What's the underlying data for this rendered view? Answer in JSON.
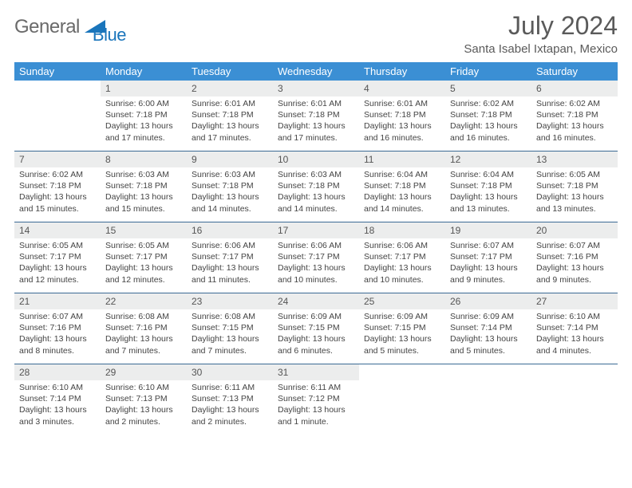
{
  "logo": {
    "main": "General",
    "sub": "Blue"
  },
  "title": "July 2024",
  "location": "Santa Isabel Ixtapan, Mexico",
  "colors": {
    "header_bg": "#3b8fd4",
    "divider": "#3b6a94",
    "daynum_bg": "#eceded",
    "text": "#444444",
    "title_color": "#5a5a5a",
    "logo_main": "#6a6a6a",
    "logo_sub": "#1a75bb"
  },
  "weekdays": [
    "Sunday",
    "Monday",
    "Tuesday",
    "Wednesday",
    "Thursday",
    "Friday",
    "Saturday"
  ],
  "grid": [
    [
      null,
      {
        "d": "1",
        "sr": "6:00 AM",
        "ss": "7:18 PM",
        "dl": "13 hours and 17 minutes."
      },
      {
        "d": "2",
        "sr": "6:01 AM",
        "ss": "7:18 PM",
        "dl": "13 hours and 17 minutes."
      },
      {
        "d": "3",
        "sr": "6:01 AM",
        "ss": "7:18 PM",
        "dl": "13 hours and 17 minutes."
      },
      {
        "d": "4",
        "sr": "6:01 AM",
        "ss": "7:18 PM",
        "dl": "13 hours and 16 minutes."
      },
      {
        "d": "5",
        "sr": "6:02 AM",
        "ss": "7:18 PM",
        "dl": "13 hours and 16 minutes."
      },
      {
        "d": "6",
        "sr": "6:02 AM",
        "ss": "7:18 PM",
        "dl": "13 hours and 16 minutes."
      }
    ],
    [
      {
        "d": "7",
        "sr": "6:02 AM",
        "ss": "7:18 PM",
        "dl": "13 hours and 15 minutes."
      },
      {
        "d": "8",
        "sr": "6:03 AM",
        "ss": "7:18 PM",
        "dl": "13 hours and 15 minutes."
      },
      {
        "d": "9",
        "sr": "6:03 AM",
        "ss": "7:18 PM",
        "dl": "13 hours and 14 minutes."
      },
      {
        "d": "10",
        "sr": "6:03 AM",
        "ss": "7:18 PM",
        "dl": "13 hours and 14 minutes."
      },
      {
        "d": "11",
        "sr": "6:04 AM",
        "ss": "7:18 PM",
        "dl": "13 hours and 14 minutes."
      },
      {
        "d": "12",
        "sr": "6:04 AM",
        "ss": "7:18 PM",
        "dl": "13 hours and 13 minutes."
      },
      {
        "d": "13",
        "sr": "6:05 AM",
        "ss": "7:18 PM",
        "dl": "13 hours and 13 minutes."
      }
    ],
    [
      {
        "d": "14",
        "sr": "6:05 AM",
        "ss": "7:17 PM",
        "dl": "13 hours and 12 minutes."
      },
      {
        "d": "15",
        "sr": "6:05 AM",
        "ss": "7:17 PM",
        "dl": "13 hours and 12 minutes."
      },
      {
        "d": "16",
        "sr": "6:06 AM",
        "ss": "7:17 PM",
        "dl": "13 hours and 11 minutes."
      },
      {
        "d": "17",
        "sr": "6:06 AM",
        "ss": "7:17 PM",
        "dl": "13 hours and 10 minutes."
      },
      {
        "d": "18",
        "sr": "6:06 AM",
        "ss": "7:17 PM",
        "dl": "13 hours and 10 minutes."
      },
      {
        "d": "19",
        "sr": "6:07 AM",
        "ss": "7:17 PM",
        "dl": "13 hours and 9 minutes."
      },
      {
        "d": "20",
        "sr": "6:07 AM",
        "ss": "7:16 PM",
        "dl": "13 hours and 9 minutes."
      }
    ],
    [
      {
        "d": "21",
        "sr": "6:07 AM",
        "ss": "7:16 PM",
        "dl": "13 hours and 8 minutes."
      },
      {
        "d": "22",
        "sr": "6:08 AM",
        "ss": "7:16 PM",
        "dl": "13 hours and 7 minutes."
      },
      {
        "d": "23",
        "sr": "6:08 AM",
        "ss": "7:15 PM",
        "dl": "13 hours and 7 minutes."
      },
      {
        "d": "24",
        "sr": "6:09 AM",
        "ss": "7:15 PM",
        "dl": "13 hours and 6 minutes."
      },
      {
        "d": "25",
        "sr": "6:09 AM",
        "ss": "7:15 PM",
        "dl": "13 hours and 5 minutes."
      },
      {
        "d": "26",
        "sr": "6:09 AM",
        "ss": "7:14 PM",
        "dl": "13 hours and 5 minutes."
      },
      {
        "d": "27",
        "sr": "6:10 AM",
        "ss": "7:14 PM",
        "dl": "13 hours and 4 minutes."
      }
    ],
    [
      {
        "d": "28",
        "sr": "6:10 AM",
        "ss": "7:14 PM",
        "dl": "13 hours and 3 minutes."
      },
      {
        "d": "29",
        "sr": "6:10 AM",
        "ss": "7:13 PM",
        "dl": "13 hours and 2 minutes."
      },
      {
        "d": "30",
        "sr": "6:11 AM",
        "ss": "7:13 PM",
        "dl": "13 hours and 2 minutes."
      },
      {
        "d": "31",
        "sr": "6:11 AM",
        "ss": "7:12 PM",
        "dl": "13 hours and 1 minute."
      },
      null,
      null,
      null
    ]
  ],
  "labels": {
    "sunrise": "Sunrise:",
    "sunset": "Sunset:",
    "daylight": "Daylight:"
  }
}
